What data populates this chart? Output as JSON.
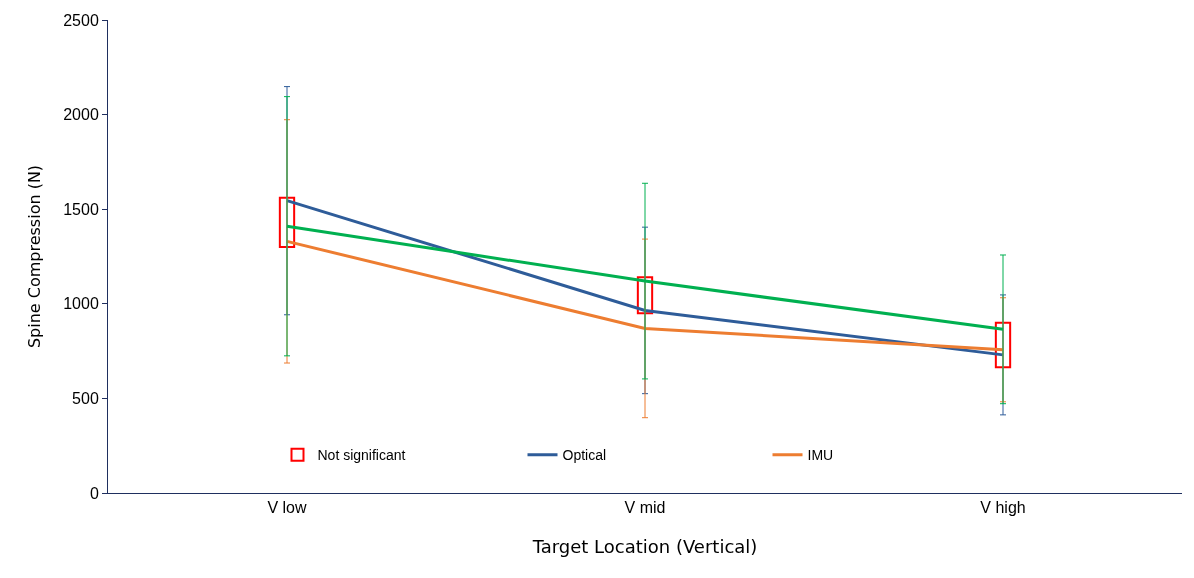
{
  "chart_data": {
    "type": "line",
    "xlabel": "Target Location (Vertical)",
    "ylabel": "Spine Compression (N)",
    "categories": [
      "V low",
      "V mid",
      "V high"
    ],
    "series": [
      {
        "name": "Optical",
        "color": "#2e5c99",
        "values": [
          1545,
          965,
          730
        ],
        "errors": [
          603,
          440,
          317
        ]
      },
      {
        "name": "IMU",
        "color": "#ed7d31",
        "values": [
          1330,
          870,
          757
        ],
        "errors": [
          643,
          472,
          275
        ]
      },
      {
        "color": "#00b050",
        "values": [
          1410,
          1120,
          865
        ],
        "errors": [
          685,
          517,
          393
        ]
      },
      {
        "name": "Not significant",
        "type": "bar",
        "color": "#ff0000",
        "base": [
          1300,
          950,
          665
        ],
        "values": [
          260,
          190,
          235
        ]
      }
    ],
    "ylim": [
      0,
      2500
    ],
    "yticks": [
      0,
      500,
      1000,
      1500,
      2000,
      2500
    ],
    "grid": false,
    "legend": "bottom",
    "marker": "none",
    "line_style": "solid"
  }
}
